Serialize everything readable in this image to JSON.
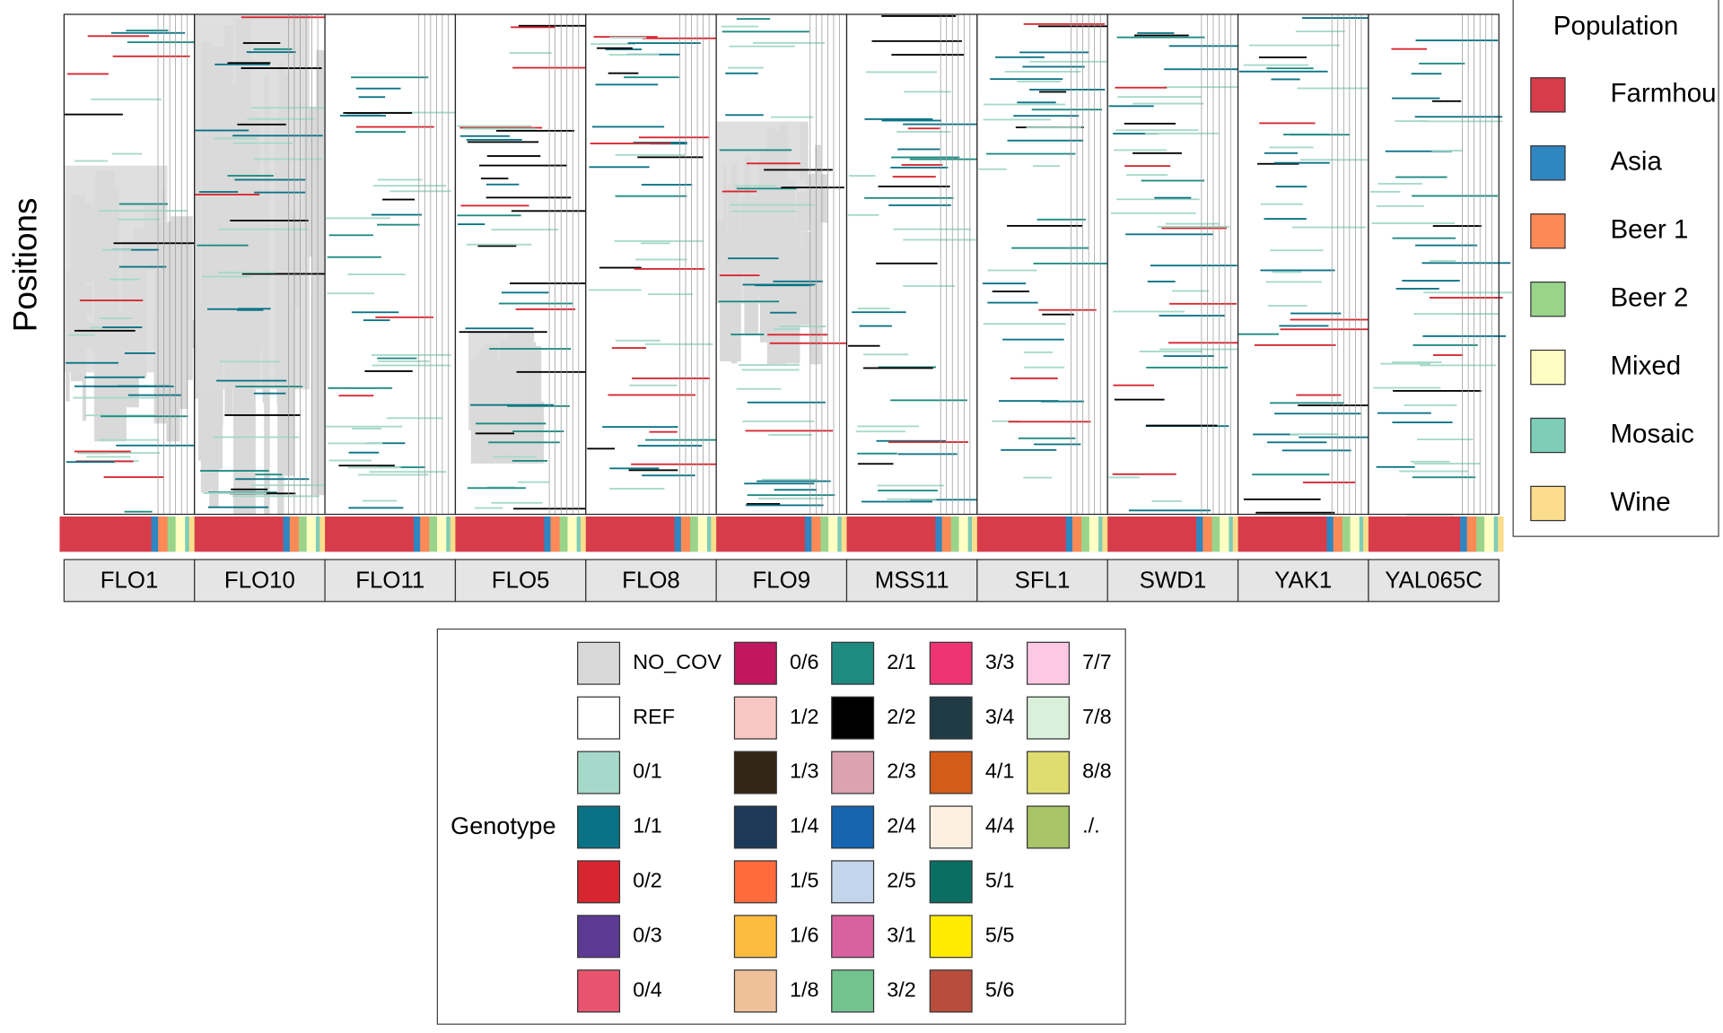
{
  "chart_data": {
    "type": "heatmap",
    "ylabel": "Positions",
    "categories": [
      "FLO1",
      "FLO10",
      "FLO11",
      "FLO5",
      "FLO8",
      "FLO9",
      "MSS11",
      "SFL1",
      "SWD1",
      "YAK1",
      "YAL065C"
    ],
    "population_legend": {
      "title": "Population",
      "items": [
        {
          "name": "Farmhou",
          "color": "#d73c4a"
        },
        {
          "name": "Asia",
          "color": "#2f86c0"
        },
        {
          "name": "Beer 1",
          "color": "#fb8a56"
        },
        {
          "name": "Beer 2",
          "color": "#9ad48b"
        },
        {
          "name": "Mixed",
          "color": "#fefec2"
        },
        {
          "name": "Mosaic",
          "color": "#7dcdb7"
        },
        {
          "name": "Wine",
          "color": "#fbdd8b"
        }
      ]
    },
    "genotype_legend": {
      "title": "Genotype",
      "items": [
        {
          "name": "NO_COV",
          "color": "#d9d9d9"
        },
        {
          "name": "REF",
          "color": "#ffffff"
        },
        {
          "name": "0/1",
          "color": "#a6d9c9"
        },
        {
          "name": "1/1",
          "color": "#0a7285"
        },
        {
          "name": "0/2",
          "color": "#d7262f"
        },
        {
          "name": "0/3",
          "color": "#5c3a93"
        },
        {
          "name": "0/4",
          "color": "#e8546e"
        },
        {
          "name": "0/6",
          "color": "#c0175e"
        },
        {
          "name": "1/2",
          "color": "#f8c6c4"
        },
        {
          "name": "1/3",
          "color": "#342617"
        },
        {
          "name": "1/4",
          "color": "#1d3a58"
        },
        {
          "name": "1/5",
          "color": "#ff6b3d"
        },
        {
          "name": "1/6",
          "color": "#fdbc3f"
        },
        {
          "name": "1/8",
          "color": "#eec19a"
        },
        {
          "name": "2/1",
          "color": "#1e8a80"
        },
        {
          "name": "2/2",
          "color": "#000000"
        },
        {
          "name": "2/3",
          "color": "#dba3af"
        },
        {
          "name": "2/4",
          "color": "#1565b0"
        },
        {
          "name": "2/5",
          "color": "#c3d5ea"
        },
        {
          "name": "3/1",
          "color": "#d8629f"
        },
        {
          "name": "3/2",
          "color": "#74c38f"
        },
        {
          "name": "3/3",
          "color": "#ee3472"
        },
        {
          "name": "3/4",
          "color": "#213b44"
        },
        {
          "name": "4/1",
          "color": "#d35c1a"
        },
        {
          "name": "4/4",
          "color": "#fdf0e1"
        },
        {
          "name": "5/1",
          "color": "#0b6e63"
        },
        {
          "name": "5/5",
          "color": "#ffeb00"
        },
        {
          "name": "5/6",
          "color": "#b84d3d"
        },
        {
          "name": "7/7",
          "color": "#fdc8e3"
        },
        {
          "name": "7/8",
          "color": "#daf0da"
        },
        {
          "name": "8/8",
          "color": "#dfdd6f"
        },
        {
          "name": "./.",
          "color": "#a7c566"
        }
      ]
    }
  }
}
